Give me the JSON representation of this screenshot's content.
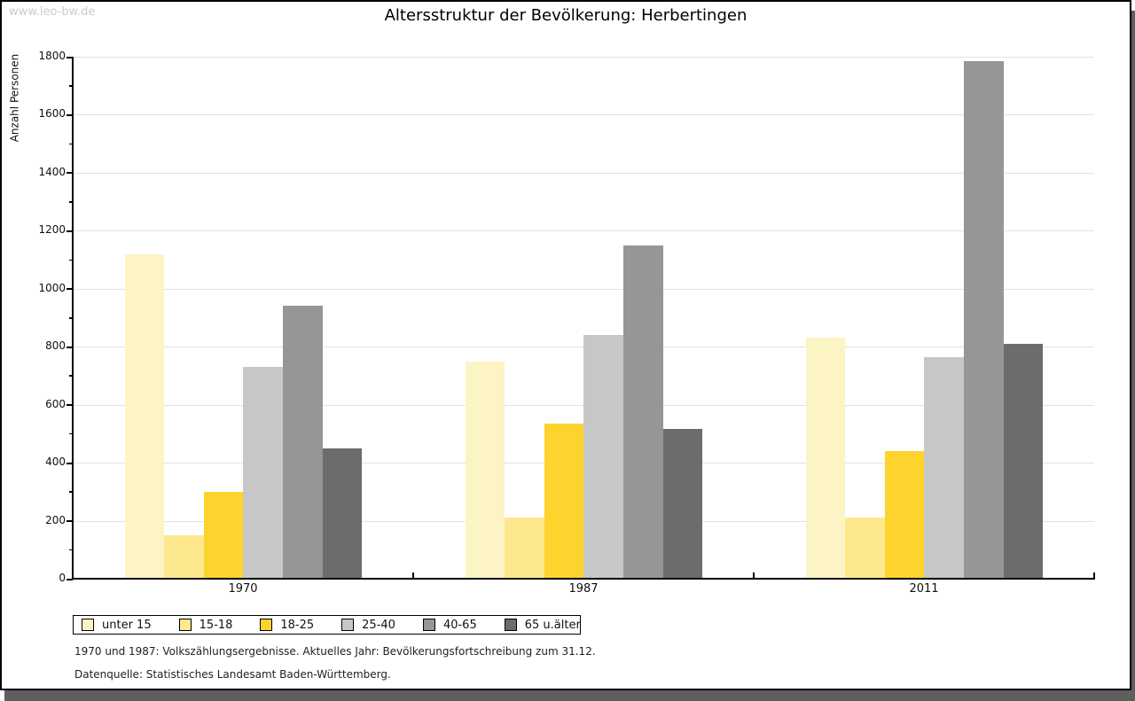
{
  "watermark": "www.leo-bw.de",
  "footnotes": {
    "line1": "1970 und 1987: Volkszählungsergebnisse. Aktuelles Jahr: Bevölkerungsfortschreibung zum 31.12.",
    "line2": "Datenquelle: Statistisches Landesamt Baden-Württemberg."
  },
  "chart_data": {
    "type": "bar",
    "title": "Altersstruktur der Bevölkerung: Herbertingen",
    "xlabel": "",
    "ylabel": "Anzahl Personen",
    "ylim": [
      0,
      1800
    ],
    "ytick_step": 200,
    "yminor_step": 100,
    "grid": true,
    "legend_position": "bottom",
    "categories": [
      "1970",
      "1987",
      "2011"
    ],
    "series": [
      {
        "name": "unter 15",
        "color": "#fcf4c5",
        "values": [
          1120,
          750,
          830
        ]
      },
      {
        "name": "15-18",
        "color": "#fde88d",
        "values": [
          150,
          210,
          210
        ]
      },
      {
        "name": "18-25",
        "color": "#fdd32e",
        "values": [
          300,
          535,
          440
        ]
      },
      {
        "name": "25-40",
        "color": "#c7c7c7",
        "values": [
          730,
          840,
          765
        ]
      },
      {
        "name": "40-65",
        "color": "#969696",
        "values": [
          940,
          1150,
          1785
        ]
      },
      {
        "name": "65 u.älter",
        "color": "#6c6c6c",
        "values": [
          450,
          515,
          810
        ]
      }
    ]
  }
}
